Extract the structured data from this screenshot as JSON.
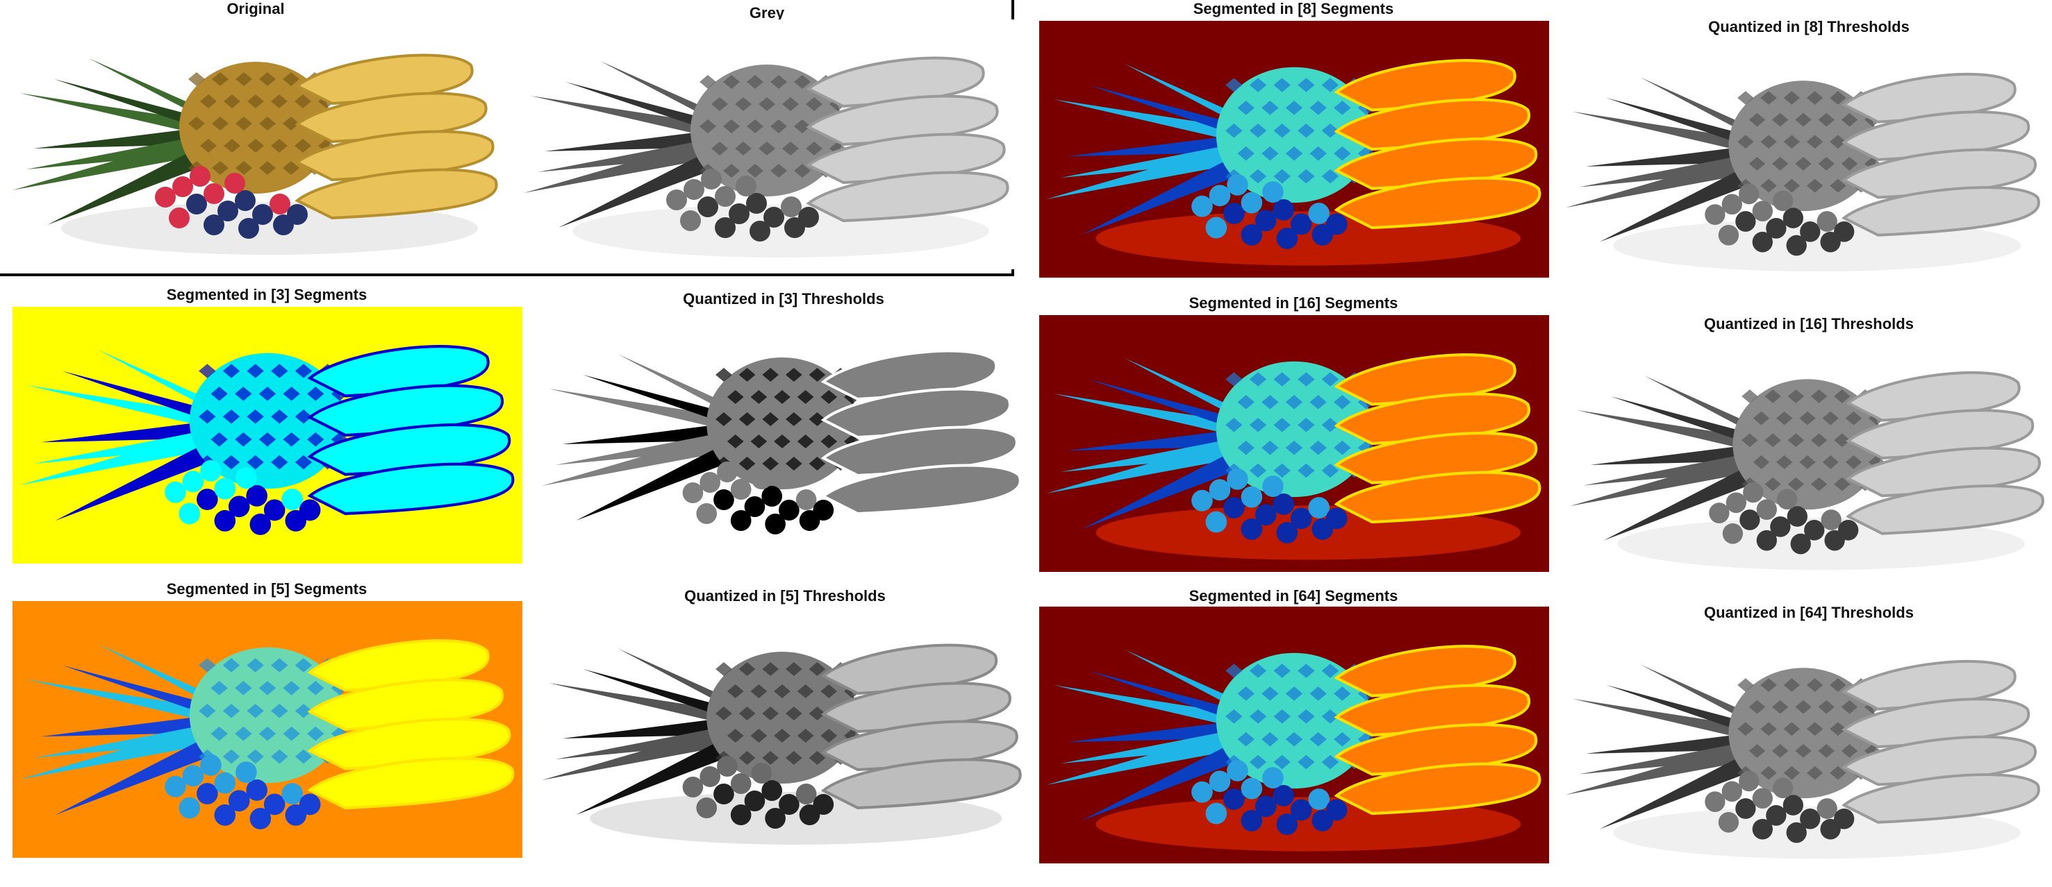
{
  "figure": {
    "panels": [
      {
        "key": "original",
        "title": "Original",
        "palette": "color"
      },
      {
        "key": "grey",
        "title": "Grey",
        "palette": "grey"
      },
      {
        "key": "seg8",
        "title": "Segmented in [8] Segments",
        "palette": "jet",
        "background": "#7a0000"
      },
      {
        "key": "quant8",
        "title": "Quantized in [8] Thresholds",
        "palette": "grey"
      },
      {
        "key": "seg3",
        "title": "Segmented in [3] Segments",
        "palette": "seg3",
        "background": "#ffff00"
      },
      {
        "key": "quant3",
        "title": "Quantized in [3] Thresholds",
        "palette": "grey3"
      },
      {
        "key": "seg16",
        "title": "Segmented in [16] Segments",
        "palette": "jet",
        "background": "#7a0000"
      },
      {
        "key": "quant16",
        "title": "Quantized in [16] Thresholds",
        "palette": "grey"
      },
      {
        "key": "seg5",
        "title": "Segmented in [5] Segments",
        "palette": "seg5",
        "background": "#ff8c00"
      },
      {
        "key": "quant5",
        "title": "Quantized in [5] Thresholds",
        "palette": "grey5"
      },
      {
        "key": "seg64",
        "title": "Segmented in [64] Segments",
        "palette": "jet",
        "background": "#7a0000"
      },
      {
        "key": "quant64",
        "title": "Quantized in [64] Thresholds",
        "palette": "grey"
      }
    ]
  }
}
